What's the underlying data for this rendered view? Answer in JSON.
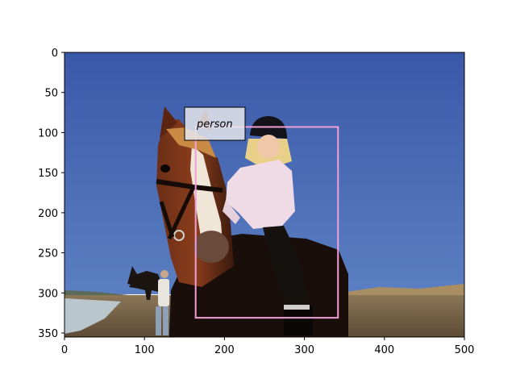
{
  "figure": {
    "image_extent": {
      "x": [
        0,
        500
      ],
      "y": [
        355,
        0
      ]
    },
    "x_ticks": [
      "0",
      "100",
      "200",
      "300",
      "400",
      "500"
    ],
    "y_ticks": [
      "0",
      "50",
      "100",
      "150",
      "200",
      "250",
      "300",
      "350"
    ],
    "annotation": {
      "label": "person",
      "box_color": "#f0a0d8",
      "box": {
        "x0": 164,
        "y0": 93,
        "x1": 342,
        "y1": 331
      }
    }
  },
  "scene": {
    "description_icon": "photo-icon",
    "sky_color": "#3d5fb0",
    "sand_color": "#7d6a50",
    "sea_color": "#b8c4c8"
  }
}
